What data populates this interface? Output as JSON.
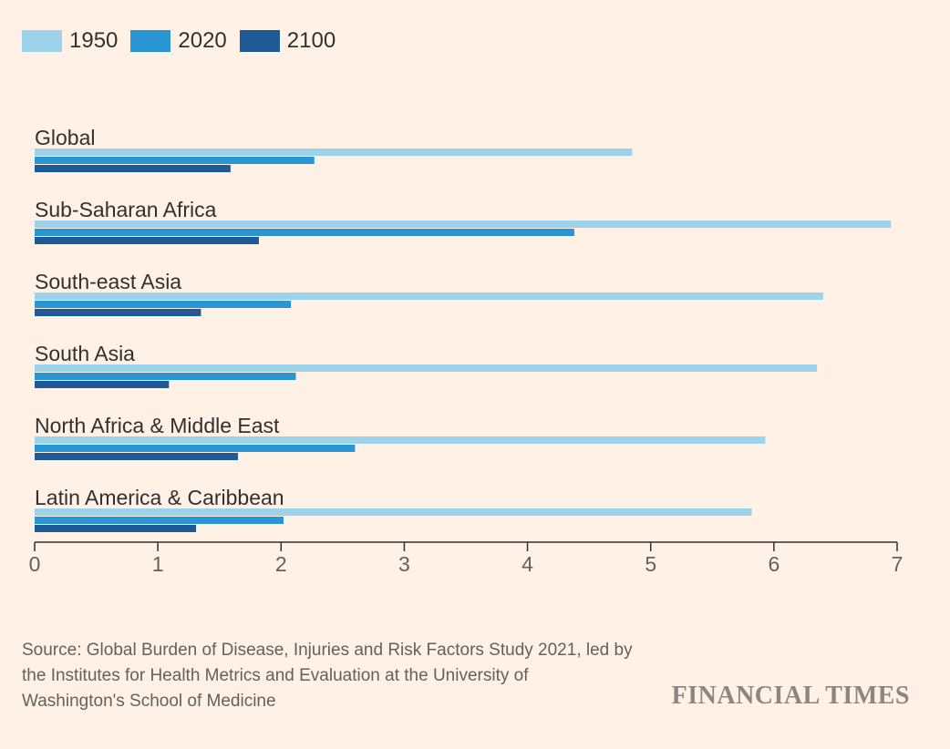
{
  "legend": {
    "items": [
      {
        "label": "1950",
        "color": "#9DD3EA"
      },
      {
        "label": "2020",
        "color": "#2995D3"
      },
      {
        "label": "2100",
        "color": "#1F5996"
      }
    ]
  },
  "chart_data": {
    "type": "bar",
    "orientation": "horizontal",
    "categories": [
      "Global",
      "Sub-Saharan Africa",
      "South-east Asia",
      "South Asia",
      "North Africa & Middle East",
      "Latin America & Caribbean"
    ],
    "series": [
      {
        "name": "1950",
        "color": "#9DD3EA",
        "values": [
          4.85,
          6.95,
          6.4,
          6.35,
          5.93,
          5.82
        ]
      },
      {
        "name": "2020",
        "color": "#2995D3",
        "values": [
          2.27,
          4.38,
          2.08,
          2.12,
          2.6,
          2.02
        ]
      },
      {
        "name": "2100",
        "color": "#1F5996",
        "values": [
          1.59,
          1.82,
          1.35,
          1.09,
          1.65,
          1.31
        ]
      }
    ],
    "xlim": [
      0,
      7
    ],
    "xticks": [
      "0",
      "1",
      "2",
      "3",
      "4",
      "5",
      "6",
      "7"
    ],
    "grid": false,
    "legend_position": "top-left",
    "title": "",
    "xlabel": "",
    "ylabel": ""
  },
  "source": {
    "text": "Source: Global Burden of Disease, Injuries and Risk Factors Study 2021, led by the Institutes for Health Metrics and Evaluation at the University of Washington's School of Medicine"
  },
  "brand": {
    "name": "FINANCIAL TIMES"
  }
}
